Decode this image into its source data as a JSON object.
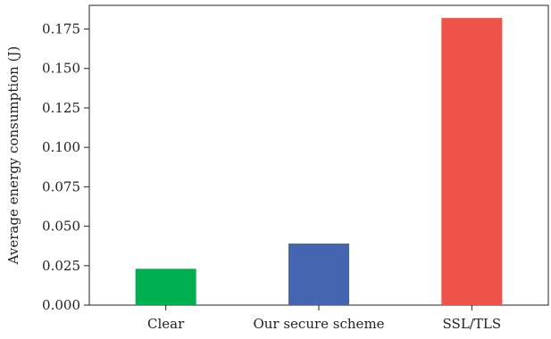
{
  "chart_data": {
    "type": "bar",
    "title": "",
    "xlabel": "",
    "ylabel": "Average energy consumption (J)",
    "categories": [
      "Clear",
      "Our secure scheme",
      "SSL/TLS"
    ],
    "values": [
      0.023,
      0.039,
      0.182
    ],
    "colors": [
      "#00b050",
      "#4466b0",
      "#ef5249"
    ],
    "ylim": [
      0,
      0.19
    ],
    "yticks": [
      0.0,
      0.025,
      0.05,
      0.075,
      0.1,
      0.125,
      0.15,
      0.175
    ],
    "ytick_labels": [
      "0.000",
      "0.025",
      "0.050",
      "0.075",
      "0.100",
      "0.125",
      "0.150",
      "0.175"
    ],
    "grid": false,
    "legend": "none"
  }
}
